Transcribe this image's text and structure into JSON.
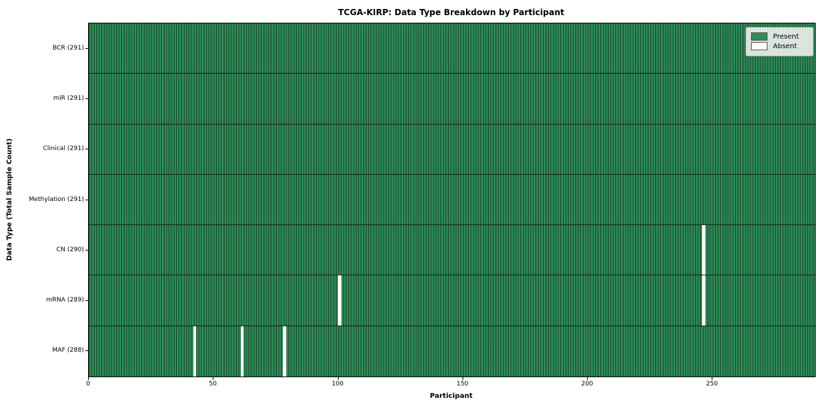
{
  "chart_data": {
    "type": "heatmap",
    "title": "TCGA-KIRP: Data Type Breakdown by Participant",
    "xlabel": "Participant",
    "ylabel": "Data Type (Total Sample Count)",
    "n_participants": 291,
    "x_ticks": [
      0,
      50,
      100,
      150,
      200,
      250
    ],
    "xlim": [
      0,
      291
    ],
    "grid": false,
    "legend_position": "upper right",
    "colors": {
      "present": "#2e8b57",
      "absent": "#ffffff",
      "bar_edge": "rgba(0,0,0,0.5)"
    },
    "legend": [
      {
        "label": "Present",
        "color": "#2e8b57"
      },
      {
        "label": "Absent",
        "color": "#ffffff"
      }
    ],
    "rows": [
      {
        "name": "BCR",
        "display": "BCR (291)",
        "total": 291,
        "absent_participant_indices": []
      },
      {
        "name": "miR",
        "display": "miR (291)",
        "total": 291,
        "absent_participant_indices": []
      },
      {
        "name": "Clinical",
        "display": "Clinical (291)",
        "total": 291,
        "absent_participant_indices": []
      },
      {
        "name": "Methylation",
        "display": "Methylation (291)",
        "total": 291,
        "absent_participant_indices": []
      },
      {
        "name": "CN",
        "display": "CN (290)",
        "total": 290,
        "absent_participant_indices": [
          246
        ]
      },
      {
        "name": "mRNA",
        "display": "mRNA (289)",
        "total": 289,
        "absent_participant_indices": [
          100,
          246
        ]
      },
      {
        "name": "MAF",
        "display": "MAF (288)",
        "total": 288,
        "absent_participant_indices": [
          42,
          61,
          78
        ]
      }
    ]
  }
}
